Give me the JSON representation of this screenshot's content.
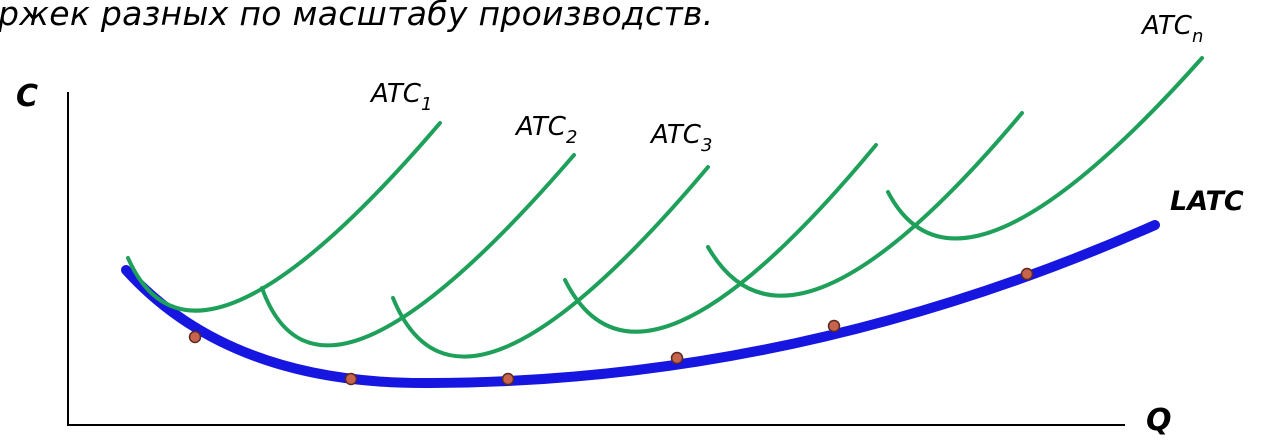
{
  "heading": "ржек разных по масштабу производств.",
  "axes": {
    "y_label": "C",
    "x_label": "Q"
  },
  "envelope": {
    "label": "LATC",
    "color": "#1616e0"
  },
  "short_run": {
    "color": "#1fa05a",
    "labels": [
      {
        "base": "ATC",
        "sub": "1"
      },
      {
        "base": "ATC",
        "sub": "2"
      },
      {
        "base": "ATC",
        "sub": "3"
      },
      {
        "base": "ATC",
        "sub": "n"
      }
    ]
  },
  "tangency_color": "#c8634e"
}
